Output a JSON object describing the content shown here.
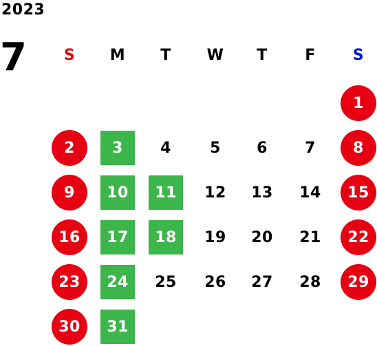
{
  "year": "2023",
  "month": "7",
  "weekdays": [
    "S",
    "M",
    "T",
    "W",
    "T",
    "F",
    "S"
  ],
  "colors": {
    "holiday_circle": "#e60012",
    "highlight_square": "#3cb54a",
    "saturday_header": "#0017c1"
  },
  "weeks": [
    [
      null,
      null,
      null,
      null,
      null,
      null,
      {
        "day": "1",
        "mark": "circle"
      }
    ],
    [
      {
        "day": "2",
        "mark": "circle"
      },
      {
        "day": "3",
        "mark": "square"
      },
      {
        "day": "4"
      },
      {
        "day": "5"
      },
      {
        "day": "6"
      },
      {
        "day": "7"
      },
      {
        "day": "8",
        "mark": "circle"
      }
    ],
    [
      {
        "day": "9",
        "mark": "circle"
      },
      {
        "day": "10",
        "mark": "square"
      },
      {
        "day": "11",
        "mark": "square"
      },
      {
        "day": "12"
      },
      {
        "day": "13"
      },
      {
        "day": "14"
      },
      {
        "day": "15",
        "mark": "circle"
      }
    ],
    [
      {
        "day": "16",
        "mark": "circle"
      },
      {
        "day": "17",
        "mark": "square"
      },
      {
        "day": "18",
        "mark": "square"
      },
      {
        "day": "19"
      },
      {
        "day": "20"
      },
      {
        "day": "21"
      },
      {
        "day": "22",
        "mark": "circle"
      }
    ],
    [
      {
        "day": "23",
        "mark": "circle"
      },
      {
        "day": "24",
        "mark": "square"
      },
      {
        "day": "25"
      },
      {
        "day": "26"
      },
      {
        "day": "27"
      },
      {
        "day": "28"
      },
      {
        "day": "29",
        "mark": "circle"
      }
    ],
    [
      {
        "day": "30",
        "mark": "circle"
      },
      {
        "day": "31",
        "mark": "square"
      },
      null,
      null,
      null,
      null,
      null
    ]
  ]
}
